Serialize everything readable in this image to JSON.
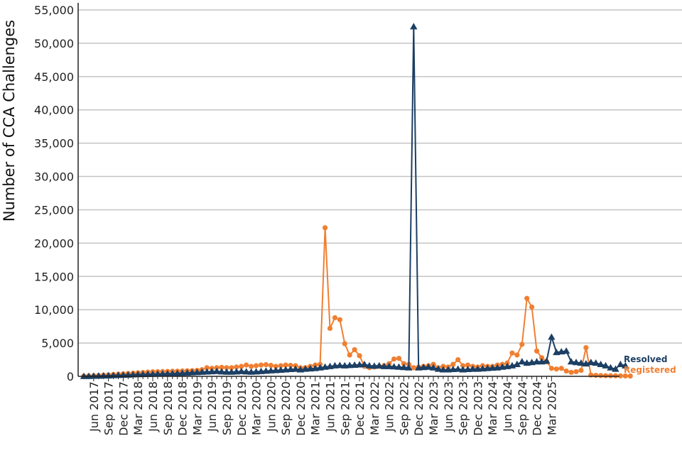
{
  "colors": {
    "registered": "#f07f31",
    "resolved": "#1c3f64",
    "grid": "#c4c4c4",
    "axis": "#222222"
  },
  "chart_data": {
    "type": "line",
    "title": "",
    "xlabel": "",
    "ylabel": "Number of CCA Challenges",
    "ylim": [
      0,
      55000
    ],
    "yticks": [
      0,
      5000,
      10000,
      15000,
      20000,
      25000,
      30000,
      35000,
      40000,
      45000,
      50000,
      55000
    ],
    "ytick_labels": [
      "0",
      "5,000",
      "10,000",
      "15,000",
      "20,000",
      "25,000",
      "30,000",
      "35,000",
      "40,000",
      "45,000",
      "50,000",
      "55,000"
    ],
    "grid": true,
    "legend_position": "right, at series ends",
    "x_start": "Apr 2017",
    "x_end": "Mar 2025",
    "xtick_labels": [
      "Jun 2017",
      "Sep 2017",
      "Dec 2017",
      "Mar 2018",
      "Jun 2018",
      "Sep 2018",
      "Dec 2018",
      "Mar 2019",
      "Jun 2019",
      "Sep 2019",
      "Dec 2019",
      "Mar 2020",
      "Jun 2020",
      "Sep 2020",
      "Dec 2020",
      "Mar 2021",
      "Jun 2021",
      "Sep 2021",
      "Dec 2021",
      "Mar 2022",
      "Jun 2022",
      "Sep 2022",
      "Dec 2022",
      "Mar 2023",
      "Jun 2023",
      "Sep 2023",
      "Dec 2023",
      "Mar 2024",
      "Jun 2024",
      "Sep 2024",
      "Dec 2024",
      "Mar 2025"
    ],
    "series": [
      {
        "name": "Registered",
        "color": "#f07f31",
        "marker": "circle",
        "values": [
          30,
          60,
          90,
          130,
          180,
          230,
          280,
          330,
          380,
          430,
          480,
          530,
          580,
          630,
          680,
          700,
          720,
          740,
          760,
          780,
          800,
          830,
          860,
          900,
          1000,
          1300,
          1200,
          1300,
          1350,
          1300,
          1300,
          1400,
          1500,
          1700,
          1500,
          1600,
          1700,
          1750,
          1650,
          1500,
          1600,
          1700,
          1650,
          1600,
          1300,
          1300,
          1500,
          1700,
          1800,
          22300,
          7200,
          8800,
          8500,
          4900,
          3200,
          4000,
          3100,
          1500,
          1300,
          1400,
          1500,
          1600,
          1900,
          2600,
          2700,
          1900,
          1800,
          1300,
          1400,
          1500,
          1600,
          1800,
          1300,
          1500,
          1400,
          1800,
          2500,
          1600,
          1700,
          1500,
          1400,
          1600,
          1500,
          1500,
          1700,
          1800,
          2000,
          3500,
          3200,
          4800,
          11700,
          10400,
          3800,
          2800,
          2200,
          1200,
          1100,
          1200,
          800,
          600,
          700,
          900,
          4300,
          200,
          150,
          120,
          100,
          90,
          80,
          70,
          60,
          50
        ]
      },
      {
        "name": "Resolved",
        "color": "#1c3f64",
        "marker": "triangle",
        "values": [
          10,
          20,
          40,
          60,
          80,
          100,
          130,
          160,
          190,
          220,
          250,
          280,
          300,
          320,
          340,
          360,
          380,
          400,
          420,
          450,
          480,
          520,
          560,
          600,
          640,
          680,
          720,
          760,
          700,
          650,
          650,
          700,
          750,
          700,
          650,
          700,
          750,
          800,
          850,
          900,
          950,
          1000,
          1050,
          1100,
          1000,
          1100,
          1150,
          1200,
          1300,
          1400,
          1500,
          1600,
          1650,
          1600,
          1650,
          1700,
          1750,
          1800,
          1600,
          1550,
          1600,
          1500,
          1500,
          1450,
          1400,
          1350,
          1300,
          52500,
          1300,
          1350,
          1400,
          1300,
          1100,
          1000,
          1000,
          1050,
          1100,
          1000,
          1050,
          1100,
          1100,
          1150,
          1200,
          1250,
          1300,
          1400,
          1500,
          1600,
          1800,
          2200,
          2000,
          2100,
          2200,
          2200,
          2300,
          5900,
          3600,
          3700,
          3800,
          2200,
          2100,
          2000,
          1900,
          2100,
          2000,
          1800,
          1600,
          1300,
          1100,
          1800,
          1600
        ]
      }
    ]
  }
}
